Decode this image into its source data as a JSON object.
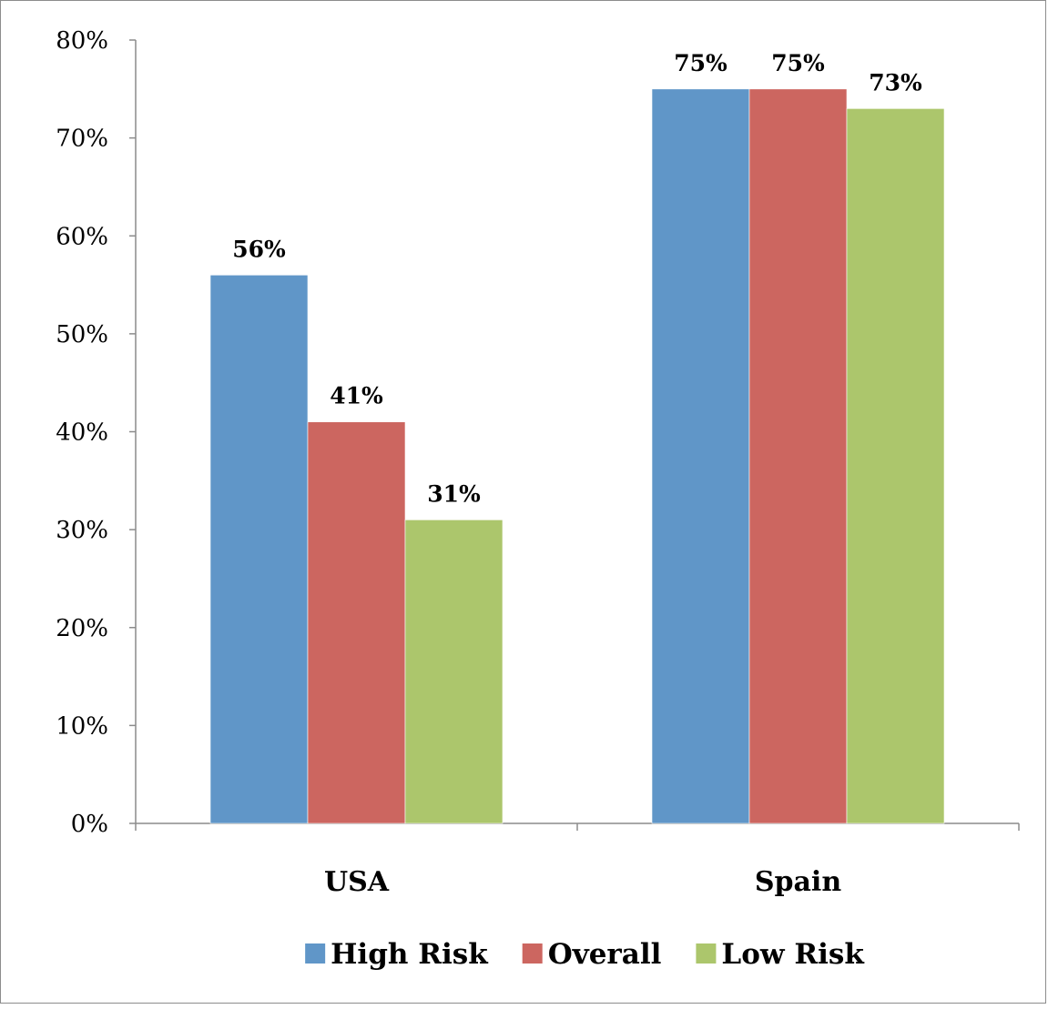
{
  "chart_data": {
    "type": "bar",
    "categories": [
      "USA",
      "Spain"
    ],
    "series": [
      {
        "name": "High Risk",
        "values": [
          56,
          75
        ],
        "labels": [
          "56%",
          "75%"
        ],
        "color": "#6096c8"
      },
      {
        "name": "Overall",
        "values": [
          41,
          75
        ],
        "labels": [
          "41%",
          "75%"
        ],
        "color": "#cc6660"
      },
      {
        "name": "Low Risk",
        "values": [
          31,
          73
        ],
        "labels": [
          "31%",
          "73%"
        ],
        "color": "#acc66c"
      }
    ],
    "ylim": [
      0,
      80
    ],
    "yticks": [
      0,
      10,
      20,
      30,
      40,
      50,
      60,
      70,
      80
    ],
    "ytick_labels": [
      "0%",
      "10%",
      "20%",
      "30%",
      "40%",
      "50%",
      "60%",
      "70%",
      "80%"
    ],
    "title": "",
    "xlabel": "",
    "ylabel": "",
    "grid": false,
    "legend_position": "bottom"
  }
}
